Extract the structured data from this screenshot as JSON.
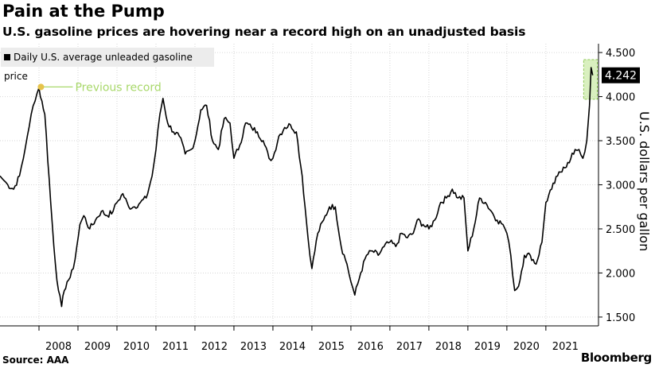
{
  "title": "Pain at the Pump",
  "subtitle": "U.S. gasoline prices are hovering near a record high on an unadjusted basis",
  "source": "Source: AAA",
  "brand": "Bloomberg",
  "colors": {
    "line": "#000000",
    "highlight": "#b9e48a",
    "marker": "#e6c34b",
    "annotation": "#a8d86a",
    "legend_bg": "#ececec"
  },
  "chart_data": {
    "type": "line",
    "title": "Pain at the Pump",
    "ylabel": "U.S. dollars per gallon",
    "xlabel": "",
    "ylim": [
      1.4,
      4.6
    ],
    "y_ticks": [
      "4.500",
      "4.000",
      "3.500",
      "3.000",
      "2.500",
      "2.000",
      "1.500"
    ],
    "y_tick_values": [
      4.5,
      4.0,
      3.5,
      3.0,
      2.5,
      2.0,
      1.5
    ],
    "x_ticks": [
      "2008",
      "2009",
      "2010",
      "2011",
      "2012",
      "2013",
      "2014",
      "2015",
      "2016",
      "2017",
      "2018",
      "2019",
      "2020",
      "2021"
    ],
    "legend": "Daily U.S. average unleaded gasoline price",
    "legend_position": "top-left",
    "grid": true,
    "series": [
      {
        "name": "Daily U.S. average unleaded gasoline price",
        "x": [
          2007.0,
          2007.1,
          2007.2,
          2007.35,
          2007.5,
          2007.6,
          2007.7,
          2007.8,
          2007.9,
          2008.0,
          2008.15,
          2008.3,
          2008.42,
          2008.5,
          2008.58,
          2008.65,
          2008.72,
          2008.8,
          2008.88,
          2008.97,
          2009.05,
          2009.15,
          2009.3,
          2009.45,
          2009.6,
          2009.75,
          2009.9,
          2010.0,
          2010.15,
          2010.3,
          2010.45,
          2010.6,
          2010.75,
          2010.9,
          2011.0,
          2011.1,
          2011.18,
          2011.3,
          2011.45,
          2011.6,
          2011.75,
          2011.9,
          2012.0,
          2012.15,
          2012.3,
          2012.45,
          2012.6,
          2012.75,
          2012.9,
          2013.0,
          2013.15,
          2013.3,
          2013.45,
          2013.6,
          2013.75,
          2013.9,
          2014.0,
          2014.15,
          2014.3,
          2014.45,
          2014.6,
          2014.75,
          2014.9,
          2015.0,
          2015.15,
          2015.3,
          2015.45,
          2015.6,
          2015.75,
          2015.9,
          2016.0,
          2016.1,
          2016.25,
          2016.4,
          2016.55,
          2016.7,
          2016.85,
          2017.0,
          2017.15,
          2017.3,
          2017.45,
          2017.6,
          2017.7,
          2017.85,
          2018.0,
          2018.15,
          2018.3,
          2018.45,
          2018.6,
          2018.75,
          2018.9,
          2019.0,
          2019.15,
          2019.3,
          2019.45,
          2019.6,
          2019.75,
          2019.9,
          2020.0,
          2020.1,
          2020.2,
          2020.3,
          2020.45,
          2020.6,
          2020.75,
          2020.9,
          2021.0,
          2021.15,
          2021.3,
          2021.45,
          2021.6,
          2021.75,
          2021.85,
          2021.95,
          2022.05,
          2022.12,
          2022.16,
          2022.2
        ],
        "values": [
          3.1,
          3.05,
          3.0,
          2.95,
          3.1,
          3.3,
          3.55,
          3.8,
          3.95,
          4.1,
          3.8,
          2.8,
          2.1,
          1.8,
          1.62,
          1.8,
          1.9,
          1.95,
          2.05,
          2.3,
          2.55,
          2.65,
          2.5,
          2.6,
          2.7,
          2.65,
          2.7,
          2.8,
          2.9,
          2.75,
          2.75,
          2.8,
          2.85,
          3.1,
          3.4,
          3.8,
          3.98,
          3.7,
          3.6,
          3.55,
          3.35,
          3.4,
          3.5,
          3.85,
          3.9,
          3.5,
          3.4,
          3.75,
          3.7,
          3.3,
          3.45,
          3.7,
          3.65,
          3.6,
          3.5,
          3.3,
          3.3,
          3.55,
          3.65,
          3.68,
          3.6,
          3.1,
          2.4,
          2.05,
          2.45,
          2.6,
          2.75,
          2.75,
          2.3,
          2.1,
          1.9,
          1.75,
          2.0,
          2.2,
          2.25,
          2.2,
          2.3,
          2.35,
          2.3,
          2.45,
          2.4,
          2.45,
          2.6,
          2.55,
          2.5,
          2.6,
          2.8,
          2.85,
          2.95,
          2.85,
          2.85,
          2.25,
          2.5,
          2.85,
          2.8,
          2.7,
          2.6,
          2.55,
          2.45,
          2.2,
          1.8,
          1.85,
          2.2,
          2.2,
          2.1,
          2.35,
          2.8,
          2.95,
          3.1,
          3.2,
          3.25,
          3.4,
          3.4,
          3.3,
          3.5,
          3.9,
          4.33,
          4.242
        ]
      }
    ],
    "annotations": [
      {
        "label": "Previous record",
        "x": 2008.5,
        "y": 4.11
      }
    ],
    "last_value_label": "4.242"
  }
}
